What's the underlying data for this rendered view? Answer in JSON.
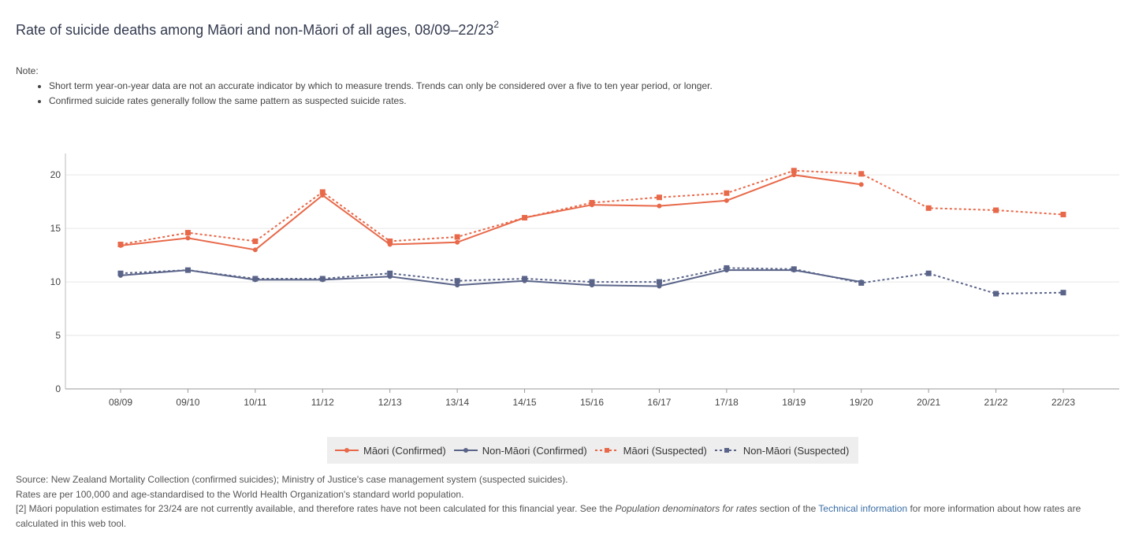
{
  "header": {
    "title": "Rate of suicide deaths among Māori and non-Māori of all ages, 08/09–22/23",
    "title_sup": "2",
    "note_label": "Note:",
    "notes": [
      "Short term year-on-year data are not an accurate indicator by which to measure trends. Trends can only be considered over a five to ten year period, or longer.",
      "Confirmed suicide rates generally follow the same pattern as suspected suicide rates."
    ]
  },
  "chart_data": {
    "type": "line",
    "categories": [
      "08/09",
      "09/10",
      "10/11",
      "11/12",
      "12/13",
      "13/14",
      "14/15",
      "15/16",
      "16/17",
      "17/18",
      "18/19",
      "19/20",
      "20/21",
      "21/22",
      "22/23"
    ],
    "ylim": [
      0,
      22
    ],
    "yticks": [
      0,
      5,
      10,
      15,
      20
    ],
    "series": [
      {
        "name": "Māori (Confirmed)",
        "color": "#e8694a",
        "dashed": false,
        "marker": "circle",
        "values": [
          13.4,
          14.1,
          13.0,
          18.1,
          13.5,
          13.7,
          16.0,
          17.2,
          17.1,
          17.6,
          20.0,
          19.1,
          null,
          null,
          null
        ]
      },
      {
        "name": "Non-Māori (Confirmed)",
        "color": "#5a6489",
        "dashed": false,
        "marker": "circle",
        "values": [
          10.6,
          11.1,
          10.2,
          10.2,
          10.5,
          9.7,
          10.1,
          9.7,
          9.6,
          11.1,
          11.1,
          10.0,
          null,
          null,
          null
        ]
      },
      {
        "name": "Māori (Suspected)",
        "color": "#e8694a",
        "dashed": true,
        "marker": "square",
        "values": [
          13.5,
          14.6,
          13.8,
          18.4,
          13.8,
          14.2,
          16.0,
          17.4,
          17.9,
          18.3,
          20.4,
          20.1,
          16.9,
          16.7,
          16.3
        ]
      },
      {
        "name": "Non-Māori (Suspected)",
        "color": "#5a6489",
        "dashed": true,
        "marker": "square",
        "values": [
          10.8,
          11.1,
          10.3,
          10.3,
          10.8,
          10.1,
          10.3,
          10.0,
          10.0,
          11.3,
          11.2,
          9.9,
          10.8,
          8.9,
          9.0
        ]
      }
    ]
  },
  "footer": {
    "source": "Source: New Zealand Mortality Collection (confirmed suicides); Ministry of Justice's case management system (suspected suicides).",
    "rates": "Rates are per 100,000 and age-standardised to the World Health Organization's standard world population.",
    "note2_a": "[2] Māori population estimates for 23/24 are not currently available, and therefore rates have not been calculated for this financial year. See the ",
    "note2_italic": "Population denominators for rates",
    "note2_b": " section of the ",
    "note2_link": "Technical information",
    "note2_c": " for more information about how rates are calculated in this web tool."
  }
}
